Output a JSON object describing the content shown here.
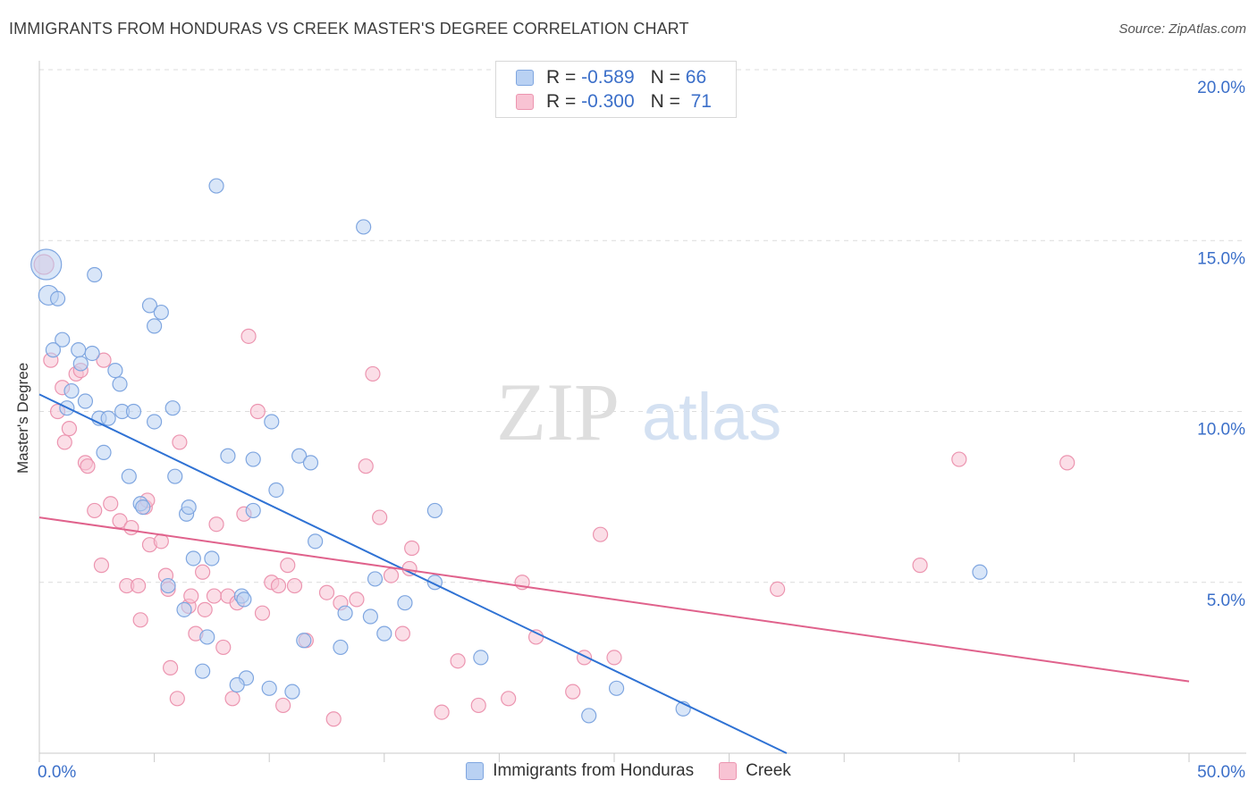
{
  "header": {
    "title": "IMMIGRANTS FROM HONDURAS VS CREEK MASTER'S DEGREE CORRELATION CHART",
    "source": "Source: ZipAtlas.com"
  },
  "legend_top": {
    "rows": [
      {
        "r_label": "R =",
        "r_value": "-0.589",
        "n_label": "N =",
        "n_value": "66"
      },
      {
        "r_label": "R =",
        "r_value": "-0.300",
        "n_label": "N =",
        "n_value": "71"
      }
    ]
  },
  "watermark": {
    "zip": "ZIP",
    "atlas": "atlas"
  },
  "colors": {
    "blue_fill": "#b9d1f3",
    "blue_stroke": "#7fa6e0",
    "blue_line": "#2f72d4",
    "pink_fill": "#f8c3d3",
    "pink_stroke": "#ec95b0",
    "pink_line": "#e0628c",
    "axis_text": "#3b6fc9",
    "grid": "#dcdcdc"
  },
  "chart_data": {
    "type": "scatter",
    "title": "IMMIGRANTS FROM HONDURAS VS CREEK MASTER'S DEGREE CORRELATION CHART",
    "xlabel": "",
    "ylabel": "Master's Degree",
    "xlim": [
      0,
      50
    ],
    "ylim": [
      0,
      20
    ],
    "x_tick_labels": [
      "0.0%",
      "50.0%"
    ],
    "y_ticks": [
      5,
      10,
      15,
      20
    ],
    "y_tick_labels": [
      "5.0%",
      "10.0%",
      "15.0%",
      "20.0%"
    ],
    "legend": [
      "Immigrants from Honduras",
      "Creek"
    ],
    "series": [
      {
        "name": "Immigrants from Honduras",
        "r": -0.589,
        "n": 66,
        "trend": {
          "x0": 0,
          "y0": 10.5,
          "x1": 32.5,
          "y1": 0
        },
        "points": [
          {
            "x": 0.3,
            "y": 14.3,
            "s": 3
          },
          {
            "x": 0.4,
            "y": 13.4,
            "s": 2
          },
          {
            "x": 0.8,
            "y": 13.3,
            "s": 1
          },
          {
            "x": 2.4,
            "y": 14.0,
            "s": 1
          },
          {
            "x": 1.0,
            "y": 12.1,
            "s": 1
          },
          {
            "x": 0.6,
            "y": 11.8,
            "s": 1
          },
          {
            "x": 1.7,
            "y": 11.8,
            "s": 1
          },
          {
            "x": 2.3,
            "y": 11.7,
            "s": 1
          },
          {
            "x": 1.8,
            "y": 11.4,
            "s": 1
          },
          {
            "x": 3.3,
            "y": 11.2,
            "s": 1
          },
          {
            "x": 3.5,
            "y": 10.8,
            "s": 1
          },
          {
            "x": 1.4,
            "y": 10.6,
            "s": 1
          },
          {
            "x": 2.0,
            "y": 10.3,
            "s": 1
          },
          {
            "x": 1.2,
            "y": 10.1,
            "s": 1
          },
          {
            "x": 2.6,
            "y": 9.8,
            "s": 1
          },
          {
            "x": 3.0,
            "y": 9.8,
            "s": 1
          },
          {
            "x": 3.6,
            "y": 10.0,
            "s": 1
          },
          {
            "x": 4.1,
            "y": 10.0,
            "s": 1
          },
          {
            "x": 5.0,
            "y": 9.7,
            "s": 1
          },
          {
            "x": 5.8,
            "y": 10.1,
            "s": 1
          },
          {
            "x": 2.8,
            "y": 8.8,
            "s": 1
          },
          {
            "x": 3.9,
            "y": 8.1,
            "s": 1
          },
          {
            "x": 4.4,
            "y": 7.3,
            "s": 1
          },
          {
            "x": 4.5,
            "y": 7.2,
            "s": 1
          },
          {
            "x": 5.9,
            "y": 8.1,
            "s": 1
          },
          {
            "x": 6.4,
            "y": 7.0,
            "s": 1
          },
          {
            "x": 6.5,
            "y": 7.2,
            "s": 1
          },
          {
            "x": 4.8,
            "y": 13.1,
            "s": 1
          },
          {
            "x": 5.3,
            "y": 12.9,
            "s": 1
          },
          {
            "x": 5.0,
            "y": 12.5,
            "s": 1
          },
          {
            "x": 7.7,
            "y": 16.6,
            "s": 1
          },
          {
            "x": 14.1,
            "y": 15.4,
            "s": 1
          },
          {
            "x": 8.2,
            "y": 8.7,
            "s": 1
          },
          {
            "x": 9.3,
            "y": 8.6,
            "s": 1
          },
          {
            "x": 10.1,
            "y": 9.7,
            "s": 1
          },
          {
            "x": 11.3,
            "y": 8.7,
            "s": 1
          },
          {
            "x": 11.8,
            "y": 8.5,
            "s": 1
          },
          {
            "x": 10.3,
            "y": 7.7,
            "s": 1
          },
          {
            "x": 9.3,
            "y": 7.1,
            "s": 1
          },
          {
            "x": 17.2,
            "y": 7.1,
            "s": 1
          },
          {
            "x": 12.0,
            "y": 6.2,
            "s": 1
          },
          {
            "x": 6.7,
            "y": 5.7,
            "s": 1
          },
          {
            "x": 7.5,
            "y": 5.7,
            "s": 1
          },
          {
            "x": 5.6,
            "y": 4.9,
            "s": 1
          },
          {
            "x": 6.3,
            "y": 4.2,
            "s": 1
          },
          {
            "x": 8.8,
            "y": 4.6,
            "s": 1
          },
          {
            "x": 8.9,
            "y": 4.5,
            "s": 1
          },
          {
            "x": 7.3,
            "y": 3.4,
            "s": 1
          },
          {
            "x": 7.1,
            "y": 2.4,
            "s": 1
          },
          {
            "x": 9.0,
            "y": 2.2,
            "s": 1
          },
          {
            "x": 8.6,
            "y": 2.0,
            "s": 1
          },
          {
            "x": 10.0,
            "y": 1.9,
            "s": 1
          },
          {
            "x": 11.0,
            "y": 1.8,
            "s": 1
          },
          {
            "x": 11.5,
            "y": 3.3,
            "s": 1
          },
          {
            "x": 13.1,
            "y": 3.1,
            "s": 1
          },
          {
            "x": 13.3,
            "y": 4.1,
            "s": 1
          },
          {
            "x": 14.4,
            "y": 4.0,
            "s": 1
          },
          {
            "x": 14.6,
            "y": 5.1,
            "s": 1
          },
          {
            "x": 15.0,
            "y": 3.5,
            "s": 1
          },
          {
            "x": 15.9,
            "y": 4.4,
            "s": 1
          },
          {
            "x": 17.2,
            "y": 5.0,
            "s": 1
          },
          {
            "x": 19.2,
            "y": 2.8,
            "s": 1
          },
          {
            "x": 23.9,
            "y": 1.1,
            "s": 1
          },
          {
            "x": 25.1,
            "y": 1.9,
            "s": 1
          },
          {
            "x": 28.0,
            "y": 1.3,
            "s": 1
          },
          {
            "x": 40.9,
            "y": 5.3,
            "s": 1
          }
        ]
      },
      {
        "name": "Creek",
        "r": -0.3,
        "n": 71,
        "trend": {
          "x0": 0,
          "y0": 6.9,
          "x1": 50,
          "y1": 2.1
        },
        "points": [
          {
            "x": 0.2,
            "y": 14.3,
            "s": 2
          },
          {
            "x": 0.5,
            "y": 11.5,
            "s": 1
          },
          {
            "x": 0.8,
            "y": 10.0,
            "s": 1
          },
          {
            "x": 1.0,
            "y": 10.7,
            "s": 1
          },
          {
            "x": 1.1,
            "y": 9.1,
            "s": 1
          },
          {
            "x": 1.3,
            "y": 9.5,
            "s": 1
          },
          {
            "x": 1.6,
            "y": 11.1,
            "s": 1
          },
          {
            "x": 1.8,
            "y": 11.2,
            "s": 1
          },
          {
            "x": 2.0,
            "y": 8.5,
            "s": 1
          },
          {
            "x": 2.1,
            "y": 8.4,
            "s": 1
          },
          {
            "x": 2.4,
            "y": 7.1,
            "s": 1
          },
          {
            "x": 2.7,
            "y": 5.5,
            "s": 1
          },
          {
            "x": 2.8,
            "y": 11.5,
            "s": 1
          },
          {
            "x": 3.1,
            "y": 7.3,
            "s": 1
          },
          {
            "x": 3.5,
            "y": 6.8,
            "s": 1
          },
          {
            "x": 3.8,
            "y": 4.9,
            "s": 1
          },
          {
            "x": 4.0,
            "y": 6.6,
            "s": 1
          },
          {
            "x": 4.3,
            "y": 4.9,
            "s": 1
          },
          {
            "x": 4.4,
            "y": 3.9,
            "s": 1
          },
          {
            "x": 4.6,
            "y": 7.2,
            "s": 1
          },
          {
            "x": 4.7,
            "y": 7.4,
            "s": 1
          },
          {
            "x": 4.8,
            "y": 6.1,
            "s": 1
          },
          {
            "x": 5.3,
            "y": 6.2,
            "s": 1
          },
          {
            "x": 5.5,
            "y": 5.2,
            "s": 1
          },
          {
            "x": 5.6,
            "y": 4.8,
            "s": 1
          },
          {
            "x": 5.7,
            "y": 2.5,
            "s": 1
          },
          {
            "x": 6.0,
            "y": 1.6,
            "s": 1
          },
          {
            "x": 6.1,
            "y": 9.1,
            "s": 1
          },
          {
            "x": 6.5,
            "y": 4.3,
            "s": 1
          },
          {
            "x": 6.6,
            "y": 4.6,
            "s": 1
          },
          {
            "x": 6.8,
            "y": 3.5,
            "s": 1
          },
          {
            "x": 7.1,
            "y": 5.3,
            "s": 1
          },
          {
            "x": 7.2,
            "y": 4.2,
            "s": 1
          },
          {
            "x": 7.6,
            "y": 4.6,
            "s": 1
          },
          {
            "x": 7.7,
            "y": 6.7,
            "s": 1
          },
          {
            "x": 8.0,
            "y": 3.1,
            "s": 1
          },
          {
            "x": 8.2,
            "y": 4.6,
            "s": 1
          },
          {
            "x": 8.4,
            "y": 1.6,
            "s": 1
          },
          {
            "x": 8.6,
            "y": 4.4,
            "s": 1
          },
          {
            "x": 8.9,
            "y": 7.0,
            "s": 1
          },
          {
            "x": 9.1,
            "y": 12.2,
            "s": 1
          },
          {
            "x": 9.5,
            "y": 10.0,
            "s": 1
          },
          {
            "x": 9.7,
            "y": 4.1,
            "s": 1
          },
          {
            "x": 10.1,
            "y": 5.0,
            "s": 1
          },
          {
            "x": 10.4,
            "y": 4.9,
            "s": 1
          },
          {
            "x": 10.6,
            "y": 1.4,
            "s": 1
          },
          {
            "x": 10.8,
            "y": 5.5,
            "s": 1
          },
          {
            "x": 11.1,
            "y": 4.9,
            "s": 1
          },
          {
            "x": 11.6,
            "y": 3.3,
            "s": 1
          },
          {
            "x": 12.5,
            "y": 4.7,
            "s": 1
          },
          {
            "x": 12.8,
            "y": 1.0,
            "s": 1
          },
          {
            "x": 13.1,
            "y": 4.4,
            "s": 1
          },
          {
            "x": 13.8,
            "y": 4.5,
            "s": 1
          },
          {
            "x": 14.2,
            "y": 8.4,
            "s": 1
          },
          {
            "x": 14.5,
            "y": 11.1,
            "s": 1
          },
          {
            "x": 14.8,
            "y": 6.9,
            "s": 1
          },
          {
            "x": 15.3,
            "y": 5.2,
            "s": 1
          },
          {
            "x": 15.8,
            "y": 3.5,
            "s": 1
          },
          {
            "x": 16.1,
            "y": 5.4,
            "s": 1
          },
          {
            "x": 16.2,
            "y": 6.0,
            "s": 1
          },
          {
            "x": 17.5,
            "y": 1.2,
            "s": 1
          },
          {
            "x": 18.2,
            "y": 2.7,
            "s": 1
          },
          {
            "x": 19.1,
            "y": 1.4,
            "s": 1
          },
          {
            "x": 20.4,
            "y": 1.6,
            "s": 1
          },
          {
            "x": 21.0,
            "y": 5.0,
            "s": 1
          },
          {
            "x": 21.6,
            "y": 3.4,
            "s": 1
          },
          {
            "x": 23.2,
            "y": 1.8,
            "s": 1
          },
          {
            "x": 23.7,
            "y": 2.8,
            "s": 1
          },
          {
            "x": 24.4,
            "y": 6.4,
            "s": 1
          },
          {
            "x": 25.0,
            "y": 2.8,
            "s": 1
          },
          {
            "x": 32.1,
            "y": 4.8,
            "s": 1
          },
          {
            "x": 38.3,
            "y": 5.5,
            "s": 1
          },
          {
            "x": 40.0,
            "y": 8.6,
            "s": 1
          },
          {
            "x": 44.7,
            "y": 8.5,
            "s": 1
          }
        ]
      }
    ]
  }
}
